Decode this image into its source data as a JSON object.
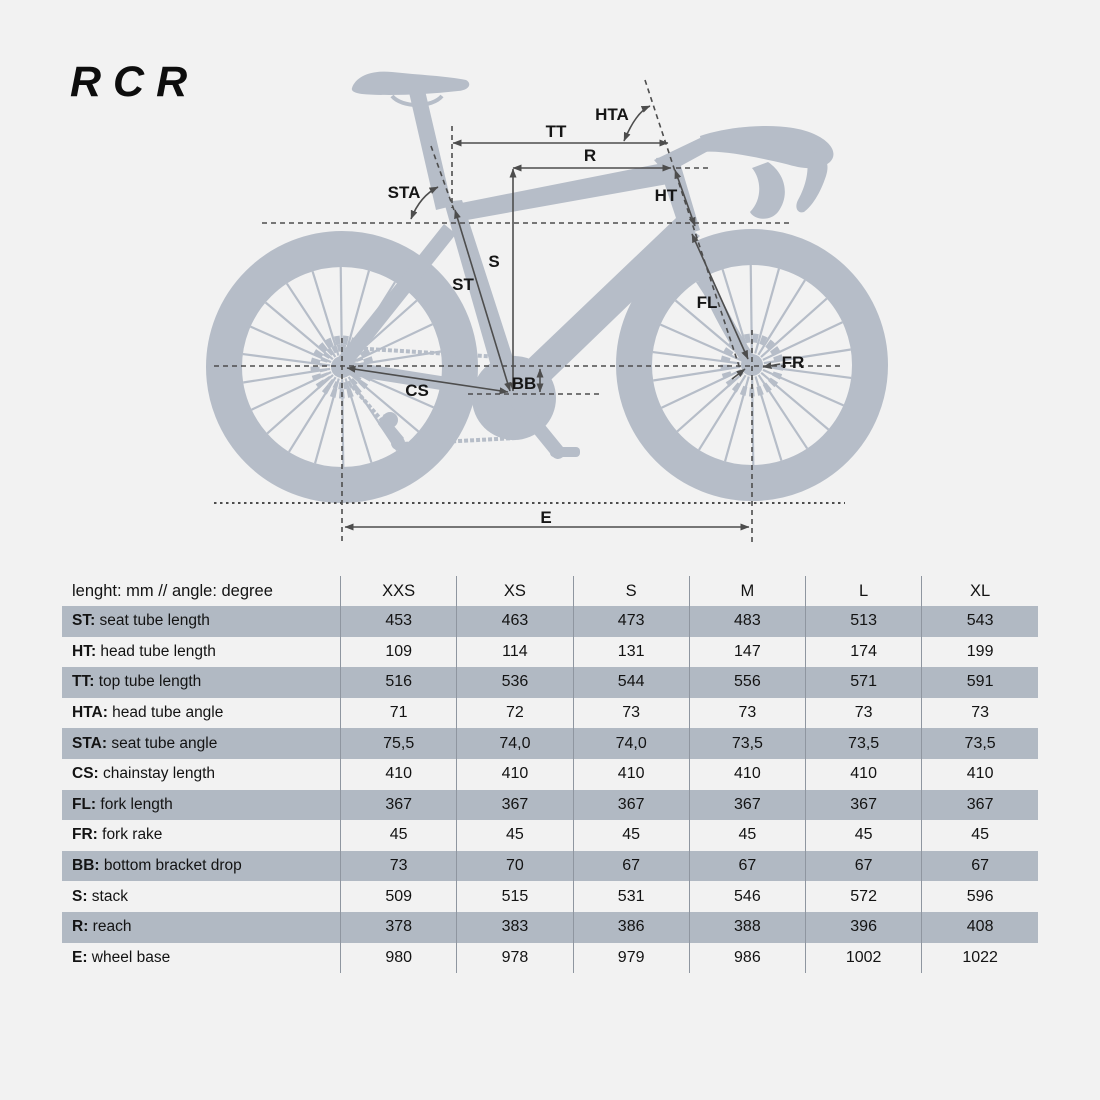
{
  "logo": "RCR",
  "colors": {
    "background": "#f2f2f2",
    "bike_silhouette": "#b6bdc8",
    "annotation_line": "#4d4d4d",
    "table_band": "#b1b9c3",
    "text": "#131313"
  },
  "diagram": {
    "labels": {
      "HTA": "HTA",
      "TT": "TT",
      "R": "R",
      "STA": "STA",
      "HT": "HT",
      "S": "S",
      "ST": "ST",
      "FL": "FL",
      "FR": "FR",
      "CS": "CS",
      "BB": "BB",
      "E": "E"
    }
  },
  "table": {
    "unit_note": "lenght: mm // angle: degree",
    "sizes": [
      "XXS",
      "XS",
      "S",
      "M",
      "L",
      "XL"
    ],
    "rows": [
      {
        "abbr": "ST:",
        "desc": " seat tube length",
        "values": [
          "453",
          "463",
          "473",
          "483",
          "513",
          "543"
        ],
        "shaded": true
      },
      {
        "abbr": "HT:",
        "desc": " head tube length",
        "values": [
          "109",
          "114",
          "131",
          "147",
          "174",
          "199"
        ],
        "shaded": false
      },
      {
        "abbr": "TT:",
        "desc": " top tube length",
        "values": [
          "516",
          "536",
          "544",
          "556",
          "571",
          "591"
        ],
        "shaded": true
      },
      {
        "abbr": "HTA:",
        "desc": " head tube angle",
        "values": [
          "71",
          "72",
          "73",
          "73",
          "73",
          "73"
        ],
        "shaded": false
      },
      {
        "abbr": "STA:",
        "desc": " seat tube angle",
        "values": [
          "75,5",
          "74,0",
          "74,0",
          "73,5",
          "73,5",
          "73,5"
        ],
        "shaded": true
      },
      {
        "abbr": "CS:",
        "desc": " chainstay length",
        "values": [
          "410",
          "410",
          "410",
          "410",
          "410",
          "410"
        ],
        "shaded": false
      },
      {
        "abbr": "FL:",
        "desc": " fork length",
        "values": [
          "367",
          "367",
          "367",
          "367",
          "367",
          "367"
        ],
        "shaded": true
      },
      {
        "abbr": "FR:",
        "desc": " fork rake",
        "values": [
          "45",
          "45",
          "45",
          "45",
          "45",
          "45"
        ],
        "shaded": false
      },
      {
        "abbr": "BB:",
        "desc": " bottom bracket drop",
        "values": [
          "73",
          "70",
          "67",
          "67",
          "67",
          "67"
        ],
        "shaded": true
      },
      {
        "abbr": "S:",
        "desc": " stack",
        "values": [
          "509",
          "515",
          "531",
          "546",
          "572",
          "596"
        ],
        "shaded": false
      },
      {
        "abbr": "R:",
        "desc": " reach",
        "values": [
          "378",
          "383",
          "386",
          "388",
          "396",
          "408"
        ],
        "shaded": true
      },
      {
        "abbr": "E:",
        "desc": " wheel base",
        "values": [
          "980",
          "978",
          "979",
          "986",
          "1002",
          "1022"
        ],
        "shaded": false
      }
    ]
  }
}
